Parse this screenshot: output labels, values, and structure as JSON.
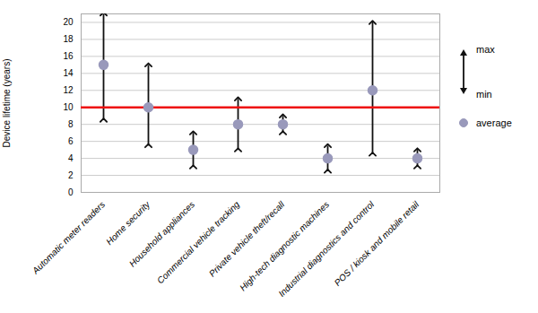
{
  "chart_data": {
    "type": "range",
    "categories": [
      "Automatic meter readers",
      "Home security",
      "Household appliances",
      "Commercial vehicle tracking",
      "Private vehicle theft/recall",
      "High-tech diagnostic machines",
      "Industrial diagnostics and control",
      "POS / kiosk and mobile retail"
    ],
    "series": [
      {
        "name": "min",
        "type": "arrow",
        "color": "#111111",
        "values": [
          8.5,
          5.5,
          3,
          5,
          7,
          2.5,
          4.5,
          3
        ]
      },
      {
        "name": "max",
        "type": "arrow",
        "color": "#111111",
        "values": [
          21,
          15,
          7,
          11,
          9,
          5.5,
          20,
          5
        ]
      },
      {
        "name": "average",
        "type": "scatter",
        "marker": "circle",
        "color": "#9999bb",
        "values": [
          15,
          10,
          5,
          8,
          8,
          4,
          12,
          4
        ]
      }
    ],
    "ref_lines": [
      {
        "value": 10,
        "color": "#ee1111"
      }
    ],
    "ylabel": "Device lifetime (years)",
    "ylim": [
      0,
      21
    ],
    "yticks": [
      0,
      2,
      4,
      6,
      8,
      10,
      12,
      14,
      16,
      18,
      20
    ],
    "grid": true,
    "legend": "right"
  }
}
